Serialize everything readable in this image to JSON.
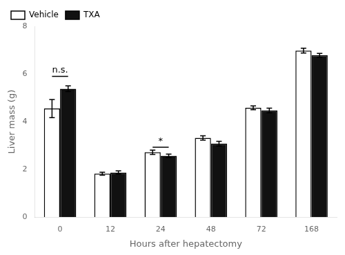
{
  "chart_data": {
    "type": "bar",
    "categories": [
      "0",
      "12",
      "24",
      "48",
      "72",
      "168"
    ],
    "series": [
      {
        "name": "Vehicle",
        "color": "#ffffff",
        "values": [
          4.55,
          1.82,
          2.72,
          3.32,
          4.58,
          6.98
        ],
        "errors": [
          0.38,
          0.06,
          0.09,
          0.09,
          0.08,
          0.1
        ]
      },
      {
        "name": "TXA",
        "color": "#111111",
        "values": [
          5.38,
          1.87,
          2.57,
          3.08,
          4.47,
          6.78
        ],
        "errors": [
          0.12,
          0.07,
          0.07,
          0.1,
          0.1,
          0.08
        ]
      }
    ],
    "xlabel": "Hours after hepatectomy",
    "ylabel": "Liver mass (g)",
    "ylim": [
      0,
      8
    ],
    "yticks": [
      0,
      2,
      4,
      6,
      8
    ],
    "grid": false,
    "legend": "upper left",
    "annotations": [
      {
        "text": "n.s.",
        "category": "0",
        "y": 5.9
      },
      {
        "text": "*",
        "category": "24",
        "y": 2.93
      }
    ]
  }
}
